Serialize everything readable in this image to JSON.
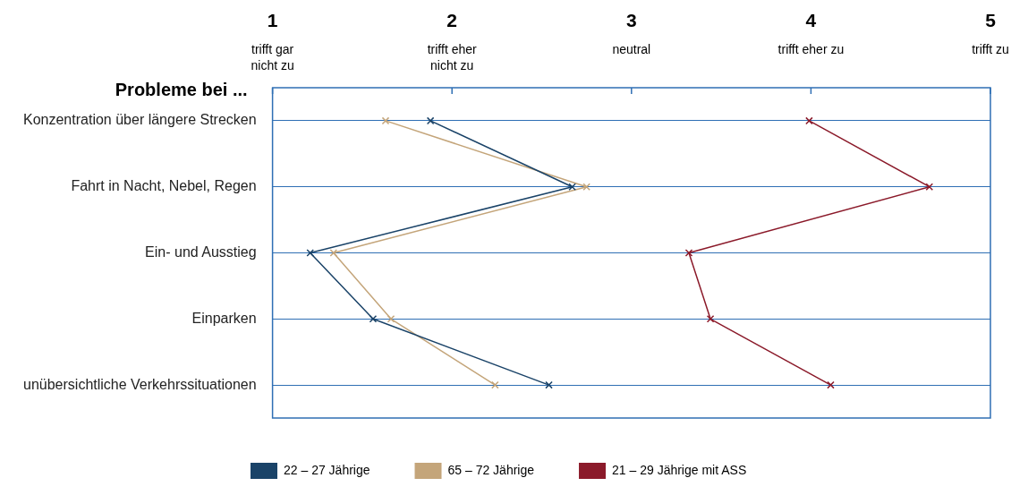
{
  "chart_data": {
    "type": "line",
    "orientation": "horizontal",
    "ylabel": "Probleme bei ...",
    "categories": [
      "Konzentration über längere Strecken",
      "Fahrt in Nacht, Nebel, Regen",
      "Ein- und Ausstieg",
      "Einparken",
      "unübersichtliche Verkehrssituationen"
    ],
    "series": [
      {
        "name": "22 – 27 Jährige",
        "color": "#1a4368",
        "values": [
          1.88,
          2.67,
          1.21,
          1.56,
          2.54
        ]
      },
      {
        "name": "65 – 72 Jährige",
        "color": "#c4a57a",
        "values": [
          1.63,
          2.75,
          1.34,
          1.66,
          2.24
        ]
      },
      {
        "name": "21 – 29 Jährige mit ASS",
        "color": "#8b1a2a",
        "values": [
          3.99,
          4.66,
          3.32,
          3.44,
          4.11
        ]
      }
    ],
    "xlim": [
      1,
      5
    ],
    "xticks": [
      {
        "value": 1,
        "label": "1\ntrifft gar\nnicht zu"
      },
      {
        "value": 2,
        "label": "2\ntrifft eher\nnicht zu"
      },
      {
        "value": 3,
        "label": "3\nneutral"
      },
      {
        "value": 4,
        "label": "4\ntrifft eher zu"
      },
      {
        "value": 5,
        "label": "5\ntrifft zu"
      }
    ],
    "grid": "y",
    "legend": "bottom",
    "marker": "cross",
    "line_style": "solid"
  }
}
